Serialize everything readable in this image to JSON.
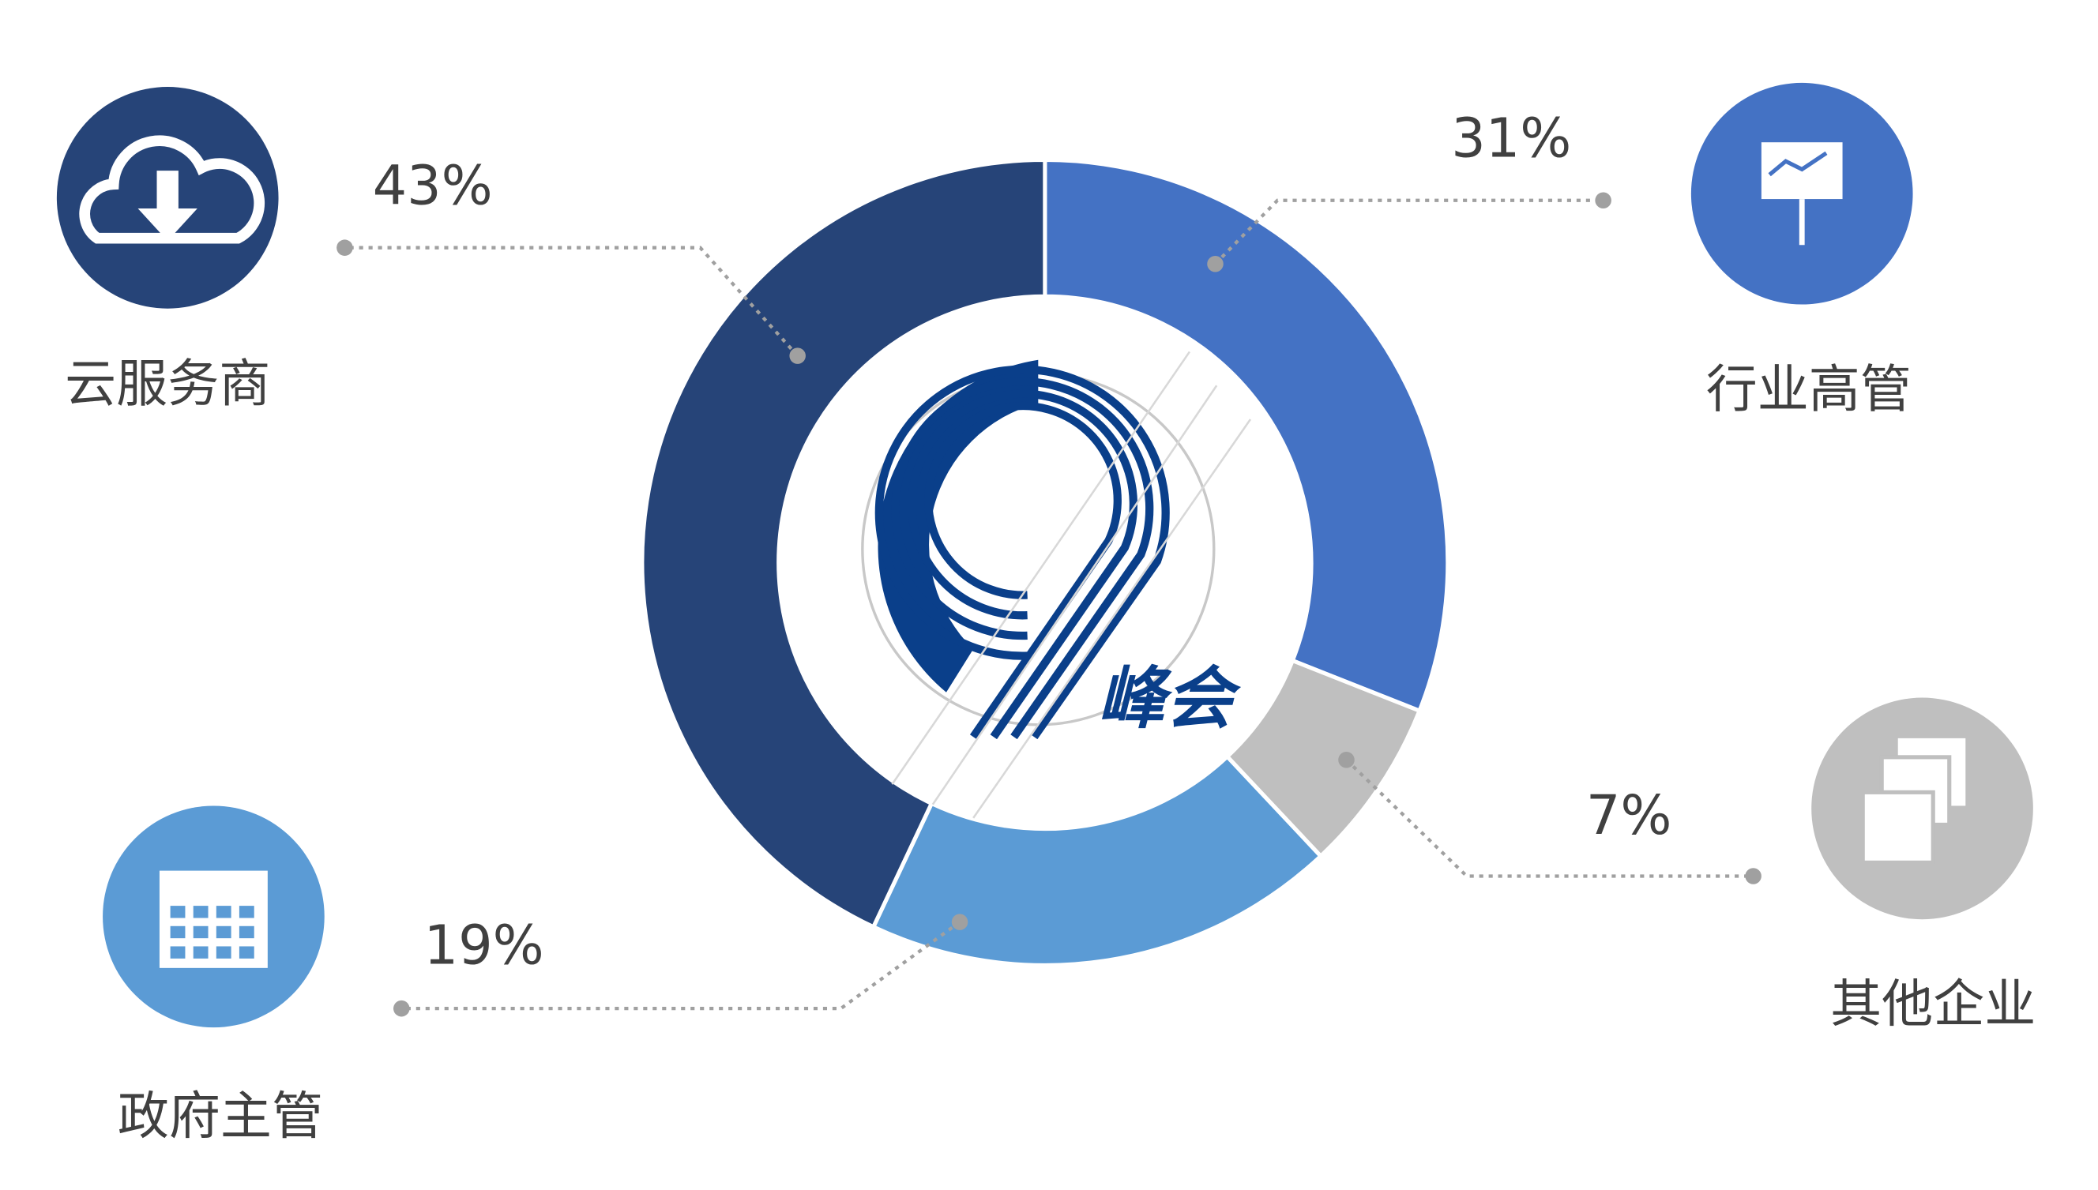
{
  "chart_data": {
    "type": "donut",
    "categories": [
      "行业高管",
      "其他企业",
      "政府主管",
      "云服务商"
    ],
    "values": [
      31,
      7,
      19,
      43
    ],
    "value_labels": [
      "31%",
      "7%",
      "19%",
      "43%"
    ],
    "colors": [
      "#4472c4",
      "#bfbfbf",
      "#5b9bd5",
      "#264478"
    ],
    "logo": "峰会"
  }
}
